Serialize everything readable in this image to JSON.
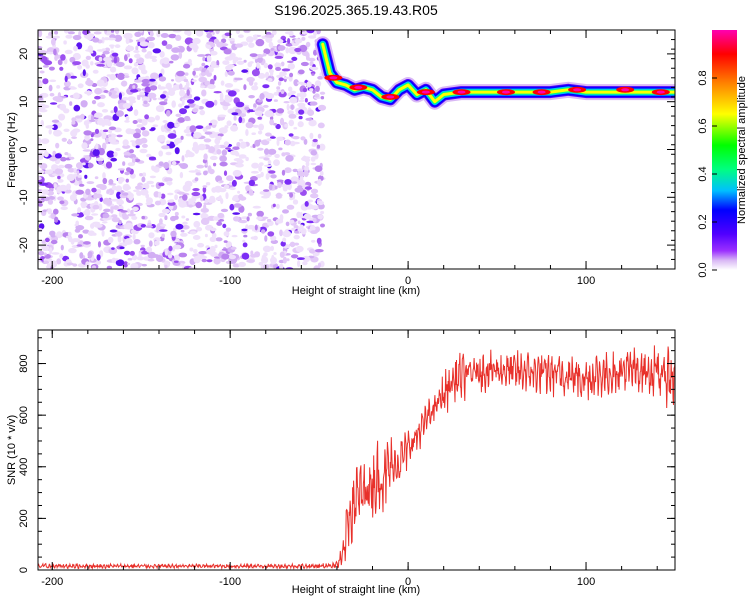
{
  "title": "S196.2025.365.19.43.R05",
  "chart_data": [
    {
      "type": "heatmap",
      "title": "S196.2025.365.19.43.R05",
      "xlabel": "Height of straight line (km)",
      "ylabel": "Frequency (Hz)",
      "xlim": [
        -208,
        150
      ],
      "ylim": [
        -25,
        25
      ],
      "xticks": [
        -200,
        -100,
        0,
        100
      ],
      "yticks": [
        -20,
        -10,
        0,
        10,
        20
      ],
      "noise_region_x": [
        -208,
        -48
      ],
      "tracked_frequency": {
        "x": [
          -48,
          -44,
          -40,
          -35,
          -30,
          -25,
          -20,
          -15,
          -10,
          -5,
          0,
          5,
          10,
          15,
          20,
          30,
          50,
          80,
          90,
          100,
          110,
          130,
          150
        ],
        "y": [
          22,
          16,
          14,
          13.5,
          12.5,
          13,
          12.5,
          11,
          10.5,
          12.5,
          13.5,
          11.5,
          12.5,
          10,
          11.5,
          12,
          12,
          12,
          12.5,
          12,
          12,
          12,
          12
        ]
      },
      "colorbar": {
        "label": "Normalized spectral amplitude",
        "ticks": [
          0.0,
          0.2,
          0.4,
          0.6,
          0.8
        ],
        "range": [
          0,
          1
        ],
        "colors": [
          "#ffffff",
          "#d9b8f5",
          "#9b30ff",
          "#5000ff",
          "#0000ff",
          "#00bfff",
          "#00ff80",
          "#00ff00",
          "#ffff00",
          "#ff8000",
          "#ff0000",
          "#ff00b0"
        ]
      }
    },
    {
      "type": "line",
      "title": "",
      "xlabel": "Height of straight line (km)",
      "ylabel": "SNR (10 * v/v)",
      "xlim": [
        -208,
        150
      ],
      "ylim": [
        0,
        930
      ],
      "xticks": [
        -200,
        -100,
        0,
        100
      ],
      "yticks": [
        0,
        200,
        400,
        600,
        800
      ],
      "color": "#e8302a",
      "series": [
        {
          "name": "SNR",
          "x": [
            -208,
            -150,
            -100,
            -50,
            -40,
            -36,
            -34,
            -30,
            -25,
            -20,
            -15,
            -10,
            -5,
            0,
            5,
            10,
            15,
            20,
            25,
            30,
            40,
            50,
            60,
            70,
            80,
            90,
            100,
            110,
            120,
            130,
            140,
            150
          ],
          "y": [
            15,
            15,
            15,
            15,
            20,
            60,
            200,
            270,
            300,
            340,
            360,
            400,
            420,
            470,
            520,
            580,
            630,
            680,
            730,
            750,
            770,
            775,
            770,
            765,
            760,
            755,
            745,
            760,
            770,
            775,
            760,
            750
          ],
          "amplitude": [
            14,
            10,
            10,
            12,
            20,
            80,
            150,
            200,
            160,
            180,
            200,
            150,
            120,
            100,
            90,
            80,
            90,
            110,
            120,
            120,
            110,
            100,
            100,
            100,
            110,
            120,
            120,
            110,
            110,
            120,
            140,
            170
          ]
        }
      ]
    }
  ]
}
